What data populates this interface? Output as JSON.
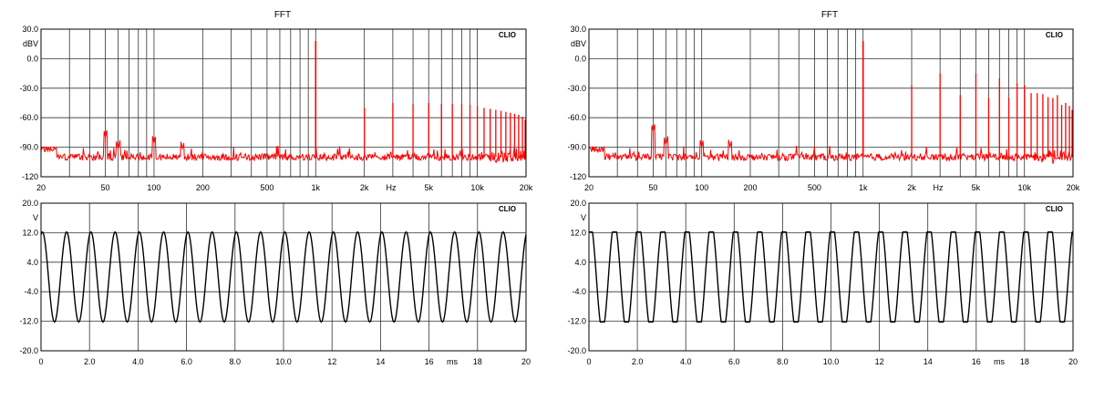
{
  "colors": {
    "spectrum": "#ff0000",
    "waveform": "#000000",
    "grid": "#333333",
    "frame": "#000000",
    "text": "#000000"
  },
  "chart_data": [
    {
      "id": "fft-left",
      "type": "line",
      "title": "FFT",
      "brand": "CLIO",
      "xscale": "log",
      "xlim": [
        20,
        20000
      ],
      "x_ticks": [
        20,
        50,
        100,
        200,
        500,
        1000,
        2000,
        5000,
        10000,
        20000
      ],
      "x_tick_labels": [
        "20",
        "50",
        "100",
        "200",
        "500",
        "1k",
        "2k",
        "5k",
        "10k",
        "20k"
      ],
      "x_unit_label": "Hz",
      "ylim": [
        -120,
        30
      ],
      "y_ticks": [
        30,
        0,
        -30,
        -60,
        -90,
        -120
      ],
      "y_tick_labels": [
        "30.0",
        "0.0",
        "-30.0",
        "-60.0",
        "-90.0",
        "-120"
      ],
      "y_unit_label": "dBV",
      "grid": true,
      "noise_floor": -100,
      "fundamental": {
        "x": 1000,
        "y": 18
      },
      "harmonics": [
        {
          "x": 2000,
          "y": -50
        },
        {
          "x": 3000,
          "y": -45
        },
        {
          "x": 4000,
          "y": -46
        },
        {
          "x": 5000,
          "y": -45
        },
        {
          "x": 6000,
          "y": -46
        },
        {
          "x": 7000,
          "y": -46
        },
        {
          "x": 8000,
          "y": -46
        },
        {
          "x": 9000,
          "y": -47
        },
        {
          "x": 10000,
          "y": -48
        },
        {
          "x": 11000,
          "y": -50
        },
        {
          "x": 12000,
          "y": -51
        },
        {
          "x": 13000,
          "y": -52
        },
        {
          "x": 14000,
          "y": -53
        },
        {
          "x": 15000,
          "y": -54
        },
        {
          "x": 16000,
          "y": -55
        },
        {
          "x": 17000,
          "y": -56
        },
        {
          "x": 18000,
          "y": -57
        },
        {
          "x": 19000,
          "y": -59
        },
        {
          "x": 20000,
          "y": -62
        }
      ],
      "low_freq_bumps": [
        {
          "x": 50,
          "y": -80
        },
        {
          "x": 100,
          "y": -86
        },
        {
          "x": 60,
          "y": -92
        },
        {
          "x": 150,
          "y": -92
        }
      ]
    },
    {
      "id": "fft-right",
      "type": "line",
      "title": "FFT",
      "brand": "CLIO",
      "xscale": "log",
      "xlim": [
        20,
        20000
      ],
      "x_ticks": [
        20,
        50,
        100,
        200,
        500,
        1000,
        2000,
        5000,
        10000,
        20000
      ],
      "x_tick_labels": [
        "20",
        "50",
        "100",
        "200",
        "500",
        "1k",
        "2k",
        "5k",
        "10k",
        "20k"
      ],
      "x_unit_label": "Hz",
      "ylim": [
        -120,
        30
      ],
      "y_ticks": [
        30,
        0,
        -30,
        -60,
        -90,
        -120
      ],
      "y_tick_labels": [
        "30.0",
        "0.0",
        "-30.0",
        "-60.0",
        "-90.0",
        "-120"
      ],
      "y_unit_label": "dBV",
      "grid": true,
      "noise_floor": -100,
      "fundamental": {
        "x": 1000,
        "y": 18
      },
      "harmonics": [
        {
          "x": 2000,
          "y": -27
        },
        {
          "x": 3000,
          "y": -15
        },
        {
          "x": 4000,
          "y": -37
        },
        {
          "x": 5000,
          "y": -15
        },
        {
          "x": 6000,
          "y": -40
        },
        {
          "x": 7000,
          "y": -20
        },
        {
          "x": 8000,
          "y": -40
        },
        {
          "x": 9000,
          "y": -25
        },
        {
          "x": 10000,
          "y": -27
        },
        {
          "x": 11000,
          "y": -35
        },
        {
          "x": 12000,
          "y": -35
        },
        {
          "x": 13000,
          "y": -36
        },
        {
          "x": 14000,
          "y": -39
        },
        {
          "x": 15000,
          "y": -40
        },
        {
          "x": 16000,
          "y": -37
        },
        {
          "x": 17000,
          "y": -47
        },
        {
          "x": 18000,
          "y": -45
        },
        {
          "x": 19000,
          "y": -48
        },
        {
          "x": 20000,
          "y": -52
        }
      ],
      "low_freq_bumps": [
        {
          "x": 50,
          "y": -74
        },
        {
          "x": 100,
          "y": -90
        },
        {
          "x": 150,
          "y": -90
        },
        {
          "x": 60,
          "y": -88
        }
      ]
    },
    {
      "id": "wave-left",
      "type": "line",
      "title": "",
      "brand": "CLIO",
      "xlim": [
        0,
        20
      ],
      "x_ticks": [
        0,
        2,
        4,
        6,
        8,
        10,
        12,
        14,
        16,
        18,
        20
      ],
      "x_tick_labels": [
        "0",
        "2.0",
        "4.0",
        "6.0",
        "8.0",
        "10.0",
        "12",
        "14",
        "16",
        "18",
        "20"
      ],
      "x_unit_label": "ms",
      "ylim": [
        -20,
        20
      ],
      "y_ticks": [
        20,
        12,
        4,
        -4,
        -12,
        -20
      ],
      "y_tick_labels": [
        "20.0",
        "12.0",
        "4.0",
        "-4.0",
        "-12.0",
        "-20.0"
      ],
      "y_unit_label": "V",
      "grid": true,
      "waveform": {
        "shape": "sine",
        "amplitude": 12.2,
        "frequency_khz": 1,
        "phase_deg": 70,
        "clip_level": null
      }
    },
    {
      "id": "wave-right",
      "type": "line",
      "title": "",
      "brand": "CLIO",
      "xlim": [
        0,
        20
      ],
      "x_ticks": [
        0,
        2,
        4,
        6,
        8,
        10,
        12,
        14,
        16,
        18,
        20
      ],
      "x_tick_labels": [
        "0",
        "2.0",
        "4.0",
        "6.0",
        "8.0",
        "10.0",
        "12",
        "14",
        "16",
        "18",
        "20"
      ],
      "x_unit_label": "ms",
      "ylim": [
        -20,
        20
      ],
      "y_ticks": [
        20,
        12,
        4,
        -4,
        -12,
        -20
      ],
      "y_tick_labels": [
        "20.0",
        "12.0",
        "4.0",
        "-4.0",
        "-12.0",
        "-20.0"
      ],
      "y_unit_label": "V",
      "grid": true,
      "waveform": {
        "shape": "clipped-sine",
        "amplitude": 14.5,
        "frequency_khz": 1,
        "phase_deg": 70,
        "clip_level": 12.2
      }
    }
  ]
}
